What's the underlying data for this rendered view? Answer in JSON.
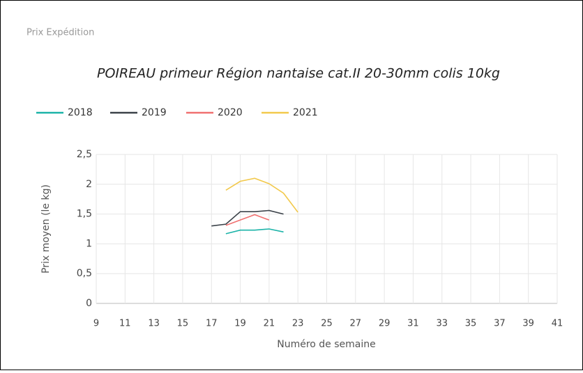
{
  "header": "Prix Expédition",
  "chart_data": {
    "type": "line",
    "title": "POIREAU primeur Région nantaise cat.II 20-30mm colis 10kg",
    "xlabel": "Numéro de semaine",
    "ylabel": "Prix moyen  (le kg)",
    "series": [
      {
        "name": "2018",
        "color": "#1bb3a8",
        "x": [
          18,
          19,
          20,
          21,
          22
        ],
        "values": [
          1.17,
          1.23,
          1.23,
          1.25,
          1.2
        ]
      },
      {
        "name": "2019",
        "color": "#3b4249",
        "x": [
          17,
          18,
          19,
          20,
          21,
          22
        ],
        "values": [
          1.3,
          1.33,
          1.54,
          1.54,
          1.56,
          1.5
        ]
      },
      {
        "name": "2020",
        "color": "#f07070",
        "x": [
          18,
          19,
          20,
          21
        ],
        "values": [
          1.31,
          1.4,
          1.49,
          1.4
        ]
      },
      {
        "name": "2021",
        "color": "#f2c94c",
        "x": [
          18,
          19,
          20,
          21,
          22,
          23
        ],
        "values": [
          1.9,
          2.05,
          2.1,
          2.01,
          1.85,
          1.53
        ]
      }
    ],
    "xlim": [
      9,
      41
    ],
    "xticks": [
      9,
      11,
      13,
      15,
      17,
      19,
      21,
      23,
      25,
      27,
      29,
      31,
      33,
      35,
      37,
      39,
      41
    ],
    "ylim": [
      0,
      2.5
    ],
    "yticks": [
      0,
      {
        "value": 0.5,
        "label": "0,5"
      },
      1,
      {
        "value": 1.5,
        "label": "1,5"
      },
      2,
      {
        "value": 2.5,
        "label": "2,5"
      }
    ],
    "grid": true,
    "legend": "top-left"
  }
}
